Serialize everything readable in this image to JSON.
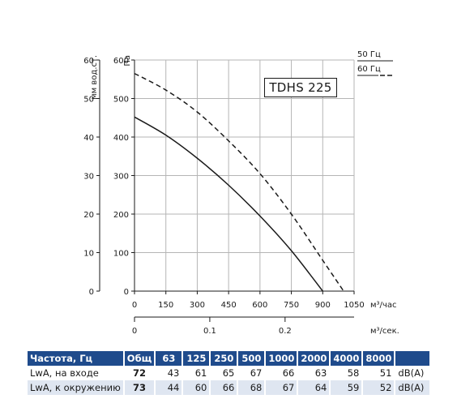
{
  "chart_data": {
    "type": "line",
    "title": "TDHS 225",
    "x_axis": {
      "label": "м³/час",
      "ticks": [
        0,
        150,
        300,
        450,
        600,
        750,
        900,
        1050
      ],
      "range": [
        0,
        1050
      ]
    },
    "x_axis_secondary": {
      "label": "м³/сек.",
      "ticks": [
        "0",
        "0.1",
        "0.2"
      ],
      "values": [
        0,
        0.1,
        0.2
      ]
    },
    "y_axis": {
      "label": "Па",
      "ticks": [
        0,
        100,
        200,
        300,
        400,
        500,
        600
      ],
      "range": [
        0,
        600
      ]
    },
    "y_axis_secondary": {
      "label": "мм вод.ст.",
      "ticks": [
        0,
        10,
        20,
        30,
        40,
        50,
        60
      ]
    },
    "legend_position": "top-right",
    "series": [
      {
        "name": "50 Гц",
        "style": "solid",
        "x": [
          0,
          150,
          300,
          450,
          600,
          750,
          900
        ],
        "y": [
          452,
          405,
          345,
          275,
          195,
          105,
          0
        ]
      },
      {
        "name": "60 Гц",
        "style": "dashed",
        "x": [
          0,
          150,
          300,
          450,
          600,
          750,
          900,
          1000
        ],
        "y": [
          565,
          522,
          465,
          390,
          305,
          200,
          80,
          0
        ]
      }
    ]
  },
  "model_label": "TDHS 225",
  "legend": [
    {
      "name": "50 Гц",
      "style": "solid"
    },
    {
      "name": "60 Гц",
      "style": "dashed"
    }
  ],
  "table": {
    "header": [
      "Частота, Гц",
      "Общ",
      "63",
      "125",
      "250",
      "500",
      "1000",
      "2000",
      "4000",
      "8000"
    ],
    "rows": [
      {
        "label": "LwA, на входе",
        "total": "72",
        "values": [
          "43",
          "61",
          "65",
          "67",
          "66",
          "63",
          "58",
          "51"
        ],
        "unit": "dB(A)"
      },
      {
        "label": "LwA, к окружению",
        "total": "73",
        "values": [
          "44",
          "60",
          "66",
          "68",
          "67",
          "64",
          "59",
          "52"
        ],
        "unit": "dB(A)"
      }
    ]
  },
  "colors": {
    "header_bg": "#1f4b8c",
    "alt_row_bg": "#dfe6f1",
    "line": "#1a1a1a"
  }
}
